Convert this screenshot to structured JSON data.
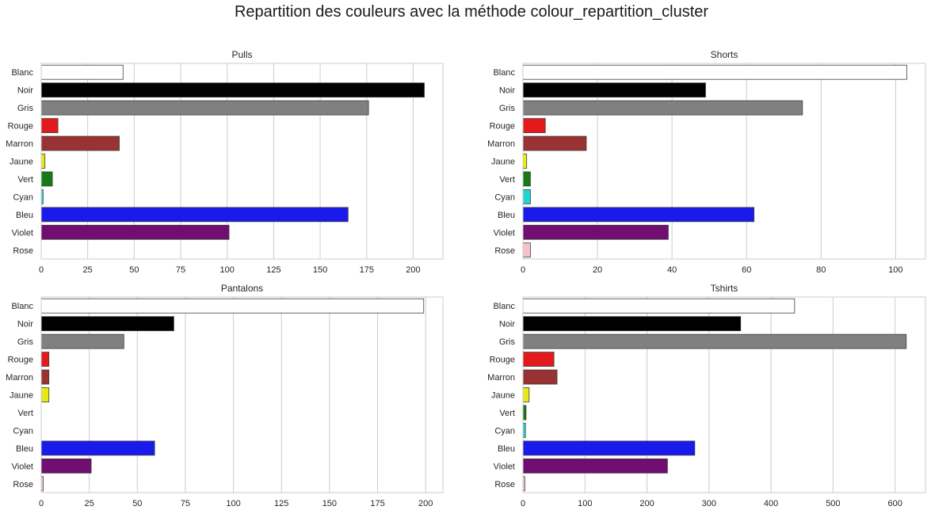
{
  "figure": {
    "suptitle": "Repartition des couleurs avec la méthode colour_repartition_cluster"
  },
  "categories": [
    "Blanc",
    "Noir",
    "Gris",
    "Rouge",
    "Marron",
    "Jaune",
    "Vert",
    "Cyan",
    "Bleu",
    "Violet",
    "Rose"
  ],
  "colors": [
    "#ffffff",
    "#000000",
    "#808080",
    "#e31a1c",
    "#993333",
    "#e8e816",
    "#177a17",
    "#20d4d4",
    "#1a1aeb",
    "#700f70",
    "#f5c2cb"
  ],
  "chart_data": [
    {
      "type": "bar",
      "orientation": "horizontal",
      "title": "Pulls",
      "categories": [
        "Blanc",
        "Noir",
        "Gris",
        "Rouge",
        "Marron",
        "Jaune",
        "Vert",
        "Cyan",
        "Bleu",
        "Violet",
        "Rose"
      ],
      "values": [
        44,
        206,
        176,
        9,
        42,
        2,
        6,
        1,
        165,
        101,
        0
      ],
      "xlim": [
        0,
        216
      ],
      "xticks": [
        0,
        25,
        50,
        75,
        100,
        125,
        150,
        175,
        200
      ],
      "grid": "vertical"
    },
    {
      "type": "bar",
      "orientation": "horizontal",
      "title": "Shorts",
      "categories": [
        "Blanc",
        "Noir",
        "Gris",
        "Rouge",
        "Marron",
        "Jaune",
        "Vert",
        "Cyan",
        "Bleu",
        "Violet",
        "Rose"
      ],
      "values": [
        103,
        49,
        75,
        6,
        17,
        1,
        2,
        2,
        62,
        39,
        2
      ],
      "xlim": [
        0,
        108
      ],
      "xticks": [
        0,
        20,
        40,
        60,
        80,
        100
      ],
      "grid": "vertical"
    },
    {
      "type": "bar",
      "orientation": "horizontal",
      "title": "Pantalons",
      "categories": [
        "Blanc",
        "Noir",
        "Gris",
        "Rouge",
        "Marron",
        "Jaune",
        "Vert",
        "Cyan",
        "Bleu",
        "Violet",
        "Rose"
      ],
      "values": [
        199,
        69,
        43,
        4,
        4,
        4,
        0,
        0,
        59,
        26,
        1
      ],
      "xlim": [
        0,
        209
      ],
      "xticks": [
        0,
        25,
        50,
        75,
        100,
        125,
        150,
        175,
        200
      ],
      "grid": "vertical"
    },
    {
      "type": "bar",
      "orientation": "horizontal",
      "title": "Tshirts",
      "categories": [
        "Blanc",
        "Noir",
        "Gris",
        "Rouge",
        "Marron",
        "Jaune",
        "Vert",
        "Cyan",
        "Bleu",
        "Violet",
        "Rose"
      ],
      "values": [
        438,
        351,
        618,
        50,
        55,
        10,
        5,
        4,
        277,
        233,
        3
      ],
      "xlim": [
        0,
        649
      ],
      "xticks": [
        0,
        100,
        200,
        300,
        400,
        500,
        600
      ],
      "grid": "vertical"
    }
  ]
}
